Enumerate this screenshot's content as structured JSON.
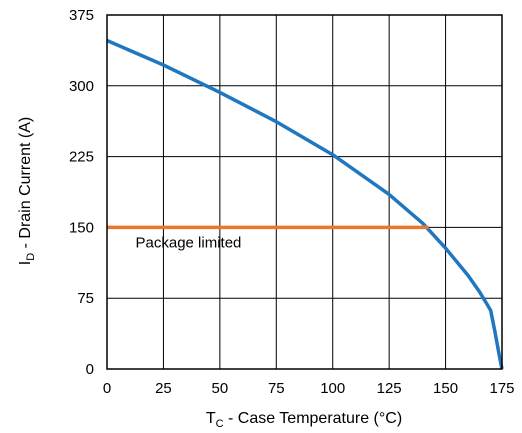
{
  "chart_data": {
    "type": "line",
    "xlabel": {
      "main": "T",
      "sub": "C",
      "rest": " - Case Temperature (°C)"
    },
    "ylabel": {
      "main": "I",
      "sub": "D",
      "rest": " - Drain Current (A)"
    },
    "xlim": [
      0,
      175
    ],
    "ylim": [
      0,
      375
    ],
    "xticks": [
      "0",
      "25",
      "50",
      "75",
      "100",
      "125",
      "150",
      "175"
    ],
    "yticks": [
      "0",
      "75",
      "150",
      "225",
      "300",
      "375"
    ],
    "grid": true,
    "series": [
      {
        "color": "#1f77c0",
        "x": [
          0,
          25,
          50,
          75,
          100,
          125,
          140,
          150,
          160,
          165,
          168,
          170,
          172,
          174,
          175
        ],
        "y": [
          348,
          322,
          293,
          262,
          227,
          185,
          154,
          128,
          99,
          82,
          70,
          62,
          38,
          12,
          0
        ]
      },
      {
        "color": "#e8782a",
        "x": [
          0,
          142.5
        ],
        "y": [
          150,
          150
        ]
      }
    ],
    "annotations": [
      {
        "text": "Package limited",
        "x": 2,
        "y": 135
      }
    ]
  }
}
